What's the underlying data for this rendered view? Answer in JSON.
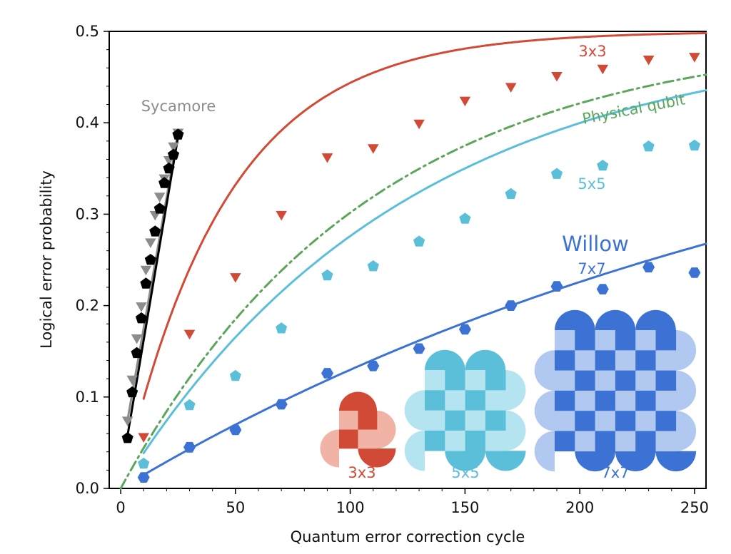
{
  "chart_data": {
    "type": "scatter",
    "xlabel": "Quantum error correction cycle",
    "ylabel": "Logical error probability",
    "xlim": [
      -5,
      255
    ],
    "ylim": [
      0.0,
      0.5
    ],
    "xticks": [
      0,
      50,
      100,
      150,
      200,
      250
    ],
    "yticks": [
      0.0,
      0.1,
      0.2,
      0.3,
      0.4,
      0.5
    ],
    "xtick_labels": [
      "0",
      "50",
      "100",
      "150",
      "200",
      "250"
    ],
    "ytick_labels": [
      "0.0",
      "0.1",
      "0.2",
      "0.3",
      "0.4",
      "0.5"
    ],
    "grid": false,
    "series": [
      {
        "name": "Sycamore-gray",
        "color": "#8c8c8c",
        "marker": "triangle-down",
        "x": [
          3,
          5,
          7,
          9,
          11,
          13,
          15,
          17,
          19,
          21,
          23,
          25
        ],
        "y": [
          0.075,
          0.12,
          0.165,
          0.2,
          0.24,
          0.27,
          0.3,
          0.32,
          0.34,
          0.36,
          0.375,
          0.39
        ]
      },
      {
        "name": "Sycamore-black",
        "color": "#000000",
        "marker": "pentagon",
        "x": [
          3,
          5,
          7,
          9,
          11,
          13,
          15,
          17,
          19,
          21,
          23,
          25
        ],
        "y": [
          0.055,
          0.105,
          0.148,
          0.186,
          0.224,
          0.25,
          0.281,
          0.306,
          0.334,
          0.35,
          0.365,
          0.387
        ]
      },
      {
        "name": "3x3",
        "color": "#d14a36",
        "marker": "triangle-down",
        "x": [
          10,
          30,
          50,
          70,
          90,
          110,
          130,
          150,
          170,
          190,
          210,
          230,
          250
        ],
        "y": [
          0.057,
          0.17,
          0.232,
          0.3,
          0.363,
          0.373,
          0.4,
          0.425,
          0.44,
          0.452,
          0.46,
          0.47,
          0.473
        ]
      },
      {
        "name": "5x5",
        "color": "#5bbfd9",
        "marker": "pentagon",
        "x": [
          10,
          30,
          50,
          70,
          90,
          110,
          130,
          150,
          170,
          190,
          210,
          230,
          250
        ],
        "y": [
          0.027,
          0.091,
          0.123,
          0.175,
          0.233,
          0.243,
          0.27,
          0.295,
          0.322,
          0.344,
          0.353,
          0.374,
          0.375
        ]
      },
      {
        "name": "7x7",
        "color": "#3b72d4",
        "marker": "hexagon",
        "x": [
          10,
          30,
          50,
          70,
          90,
          110,
          130,
          150,
          170,
          190,
          210,
          230,
          250
        ],
        "y": [
          0.012,
          0.045,
          0.064,
          0.092,
          0.126,
          0.134,
          0.153,
          0.174,
          0.2,
          0.221,
          0.218,
          0.242,
          0.236
        ]
      }
    ],
    "fits": [
      {
        "name": "Sycamore fit (gray)",
        "color": "#8c8c8c",
        "style": "solid",
        "x": [
          3,
          25
        ],
        "y": [
          0.075,
          0.39
        ]
      },
      {
        "name": "Sycamore fit (black)",
        "color": "#000000",
        "style": "solid",
        "x": [
          3,
          25
        ],
        "y": [
          0.058,
          0.385
        ]
      },
      {
        "name": "3x3 fit",
        "color": "#d14a36",
        "style": "solid",
        "eps": 0.0108,
        "x0": 10,
        "x1": 255
      },
      {
        "name": "Physical qubit",
        "color": "#5aa65a",
        "style": "dashdot",
        "eps": 0.0046,
        "x0": 0,
        "x1": 255
      },
      {
        "name": "5x5 fit",
        "color": "#5bbfd9",
        "style": "solid",
        "eps": 0.004,
        "x0": 10,
        "x1": 255
      },
      {
        "name": "7x7 fit",
        "color": "#3b72d4",
        "style": "solid",
        "eps": 0.0015,
        "x0": 10,
        "x1": 255
      }
    ],
    "annotations": {
      "sycamore": "Sycamore",
      "label_3x3": "3x3",
      "physical": "Physical qubit",
      "label_5x5": "5x5",
      "willow": "Willow",
      "label_7x7": "7x7"
    },
    "insets": [
      {
        "label": "3x3",
        "size": 2,
        "color": "#d14a36",
        "light": "#f2b3a7"
      },
      {
        "label": "5x5",
        "size": 4,
        "color": "#5bbfd9",
        "light": "#b4e4f0"
      },
      {
        "label": "7x7",
        "size": 6,
        "color": "#3b72d4",
        "light": "#b1c8f1"
      }
    ]
  }
}
